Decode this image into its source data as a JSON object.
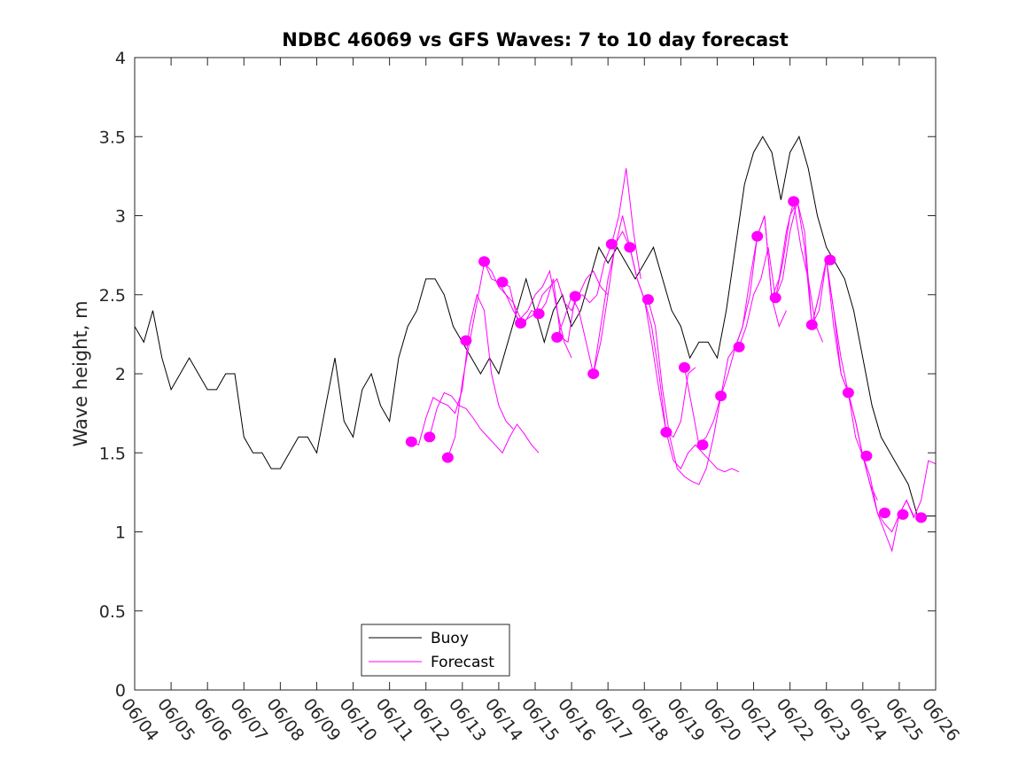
{
  "chart_data": {
    "type": "line",
    "title": "NDBC 46069 vs GFS Waves: 7 to 10 day forecast",
    "xlabel": "",
    "ylabel": "Wave height, m",
    "ylim": [
      0,
      4
    ],
    "yticks": [
      0,
      0.5,
      1,
      1.5,
      2,
      2.5,
      3,
      3.5,
      4
    ],
    "ytick_labels": [
      "0",
      "0.5",
      "1",
      "1.5",
      "2",
      "2.5",
      "3",
      "3.5",
      "4"
    ],
    "xlim_days": [
      4,
      26
    ],
    "xtick_labels": [
      "06/04",
      "06/05",
      "06/06",
      "06/07",
      "06/08",
      "06/09",
      "06/10",
      "06/11",
      "06/12",
      "06/13",
      "06/14",
      "06/15",
      "06/16",
      "06/17",
      "06/18",
      "06/19",
      "06/20",
      "06/21",
      "06/22",
      "06/23",
      "06/24",
      "06/25",
      "06/26"
    ],
    "grid": false,
    "legend": {
      "position": "bottom-left",
      "entries": [
        "Buoy",
        "Forecast"
      ]
    },
    "colors": {
      "buoy": "#000000",
      "forecast": "#ff00ff",
      "axis": "#262626"
    },
    "buoy": {
      "name": "Buoy",
      "x": [
        4.0,
        4.25,
        4.5,
        4.75,
        5.0,
        5.25,
        5.5,
        5.75,
        6.0,
        6.25,
        6.5,
        6.75,
        7.0,
        7.25,
        7.5,
        7.75,
        8.0,
        8.25,
        8.5,
        8.75,
        9.0,
        9.25,
        9.5,
        9.75,
        10.0,
        10.25,
        10.5,
        10.75,
        11.0,
        11.25,
        11.5,
        11.75,
        12.0,
        12.25,
        12.5,
        12.75,
        13.0,
        13.25,
        13.5,
        13.75,
        14.0,
        14.25,
        14.5,
        14.75,
        15.0,
        15.25,
        15.5,
        15.75,
        16.0,
        16.25,
        16.5,
        16.75,
        17.0,
        17.25,
        17.5,
        17.75,
        18.0,
        18.25,
        18.5,
        18.75,
        19.0,
        19.25,
        19.5,
        19.75,
        20.0,
        20.25,
        20.5,
        20.75,
        21.0,
        21.25,
        21.5,
        21.75,
        22.0,
        22.25,
        22.5,
        22.75,
        23.0,
        23.25,
        23.5,
        23.75,
        24.0,
        24.25,
        24.5,
        24.75,
        25.0,
        25.25,
        25.5,
        25.75,
        26.0
      ],
      "y": [
        2.3,
        2.2,
        2.4,
        2.1,
        1.9,
        2.0,
        2.1,
        2.0,
        1.9,
        1.9,
        2.0,
        2.0,
        1.6,
        1.5,
        1.5,
        1.4,
        1.4,
        1.5,
        1.6,
        1.6,
        1.5,
        1.8,
        2.1,
        1.7,
        1.6,
        1.9,
        2.0,
        1.8,
        1.7,
        2.1,
        2.3,
        2.4,
        2.6,
        2.6,
        2.5,
        2.3,
        2.2,
        2.1,
        2.0,
        2.1,
        2.0,
        2.2,
        2.4,
        2.6,
        2.4,
        2.2,
        2.4,
        2.5,
        2.3,
        2.4,
        2.6,
        2.8,
        2.7,
        2.8,
        2.7,
        2.6,
        2.7,
        2.8,
        2.6,
        2.4,
        2.3,
        2.1,
        2.2,
        2.2,
        2.1,
        2.4,
        2.8,
        3.2,
        3.4,
        3.5,
        3.4,
        3.1,
        3.4,
        3.5,
        3.3,
        3.0,
        2.8,
        2.7,
        2.6,
        2.4,
        2.1,
        1.8,
        1.6,
        1.5,
        1.4,
        1.3,
        1.1,
        1.1,
        1.1
      ]
    },
    "forecast_traces": [
      {
        "x": [
          11.6,
          11.8,
          12.0,
          12.2,
          12.4,
          12.6,
          12.8,
          13.0,
          13.2,
          13.4,
          13.6,
          13.8,
          14.0,
          14.2,
          14.4
        ],
        "y": [
          1.57,
          1.55,
          1.72,
          1.85,
          1.82,
          1.8,
          1.75,
          1.9,
          2.3,
          2.5,
          2.4,
          2.0,
          1.8,
          1.7,
          1.65
        ]
      },
      {
        "x": [
          12.1,
          12.3,
          12.5,
          12.7,
          12.9,
          13.1,
          13.3,
          13.5,
          13.7,
          13.9,
          14.1,
          14.3,
          14.5,
          14.7,
          14.9,
          15.1
        ],
        "y": [
          1.6,
          1.78,
          1.88,
          1.86,
          1.8,
          1.78,
          1.72,
          1.65,
          1.6,
          1.55,
          1.5,
          1.6,
          1.68,
          1.62,
          1.55,
          1.5
        ]
      },
      {
        "x": [
          12.6,
          12.8,
          13.0,
          13.2,
          13.4,
          13.6,
          13.8,
          14.0,
          14.2,
          14.4,
          14.6,
          14.8,
          15.0,
          15.2,
          15.4,
          15.6,
          15.8,
          16.0
        ],
        "y": [
          1.47,
          1.6,
          1.95,
          2.2,
          2.45,
          2.7,
          2.65,
          2.55,
          2.5,
          2.45,
          2.35,
          2.4,
          2.5,
          2.55,
          2.65,
          2.4,
          2.2,
          2.1
        ]
      },
      {
        "x": [
          13.6,
          13.8,
          14.0,
          14.2,
          14.4,
          14.6,
          14.8,
          15.0,
          15.2,
          15.4,
          15.6,
          15.8,
          16.0,
          16.2,
          16.4,
          16.6,
          16.8,
          17.0
        ],
        "y": [
          2.71,
          2.6,
          2.58,
          2.5,
          2.4,
          2.32,
          2.35,
          2.38,
          2.5,
          2.55,
          2.6,
          2.45,
          2.4,
          2.5,
          2.6,
          2.65,
          2.55,
          2.5
        ]
      },
      {
        "x": [
          14.1,
          14.3,
          14.5,
          14.7,
          14.9,
          15.1,
          15.3,
          15.5,
          15.7,
          15.9,
          16.1,
          16.3,
          16.5,
          16.7,
          16.9,
          17.1,
          17.3,
          17.5,
          17.7,
          17.9
        ],
        "y": [
          2.58,
          2.55,
          2.35,
          2.32,
          2.4,
          2.38,
          2.45,
          2.6,
          2.23,
          2.2,
          2.49,
          2.5,
          2.45,
          2.5,
          2.7,
          2.82,
          3.0,
          3.3,
          2.9,
          2.6
        ]
      },
      {
        "x": [
          15.6,
          15.8,
          16.0,
          16.2,
          16.4,
          16.6,
          16.8,
          17.0,
          17.2,
          17.4,
          17.6,
          17.8,
          18.0,
          18.2,
          18.4,
          18.6,
          18.8,
          19.0,
          19.2,
          19.4
        ],
        "y": [
          2.23,
          2.35,
          2.49,
          2.4,
          2.2,
          2.0,
          2.3,
          2.6,
          2.8,
          3.0,
          2.8,
          2.6,
          2.47,
          2.2,
          1.9,
          1.63,
          1.6,
          1.7,
          2.0,
          2.04
        ]
      },
      {
        "x": [
          16.6,
          16.8,
          17.0,
          17.2,
          17.4,
          17.6,
          17.8,
          18.0,
          18.2,
          18.4,
          18.6,
          18.8,
          19.0,
          19.2,
          19.4,
          19.6,
          19.8,
          20.0,
          20.2,
          20.4,
          20.6
        ],
        "y": [
          2.0,
          2.2,
          2.5,
          2.82,
          2.9,
          2.8,
          2.6,
          2.47,
          2.3,
          2.0,
          1.63,
          1.45,
          1.4,
          1.5,
          1.55,
          1.5,
          1.45,
          1.4,
          1.38,
          1.4,
          1.38
        ]
      },
      {
        "x": [
          18.1,
          18.3,
          18.5,
          18.7,
          18.9,
          19.1,
          19.3,
          19.5,
          19.7,
          19.9,
          20.1,
          20.3,
          20.5,
          20.7,
          20.9,
          21.1,
          21.3,
          21.5,
          21.7,
          21.9
        ],
        "y": [
          2.47,
          2.3,
          1.9,
          1.6,
          1.4,
          1.35,
          1.32,
          1.3,
          1.4,
          1.6,
          1.86,
          2.0,
          2.17,
          2.3,
          2.5,
          2.87,
          3.0,
          2.48,
          2.3,
          2.4
        ]
      },
      {
        "x": [
          19.1,
          19.3,
          19.5,
          19.7,
          19.9,
          20.1,
          20.3,
          20.5,
          20.7,
          20.9,
          21.1,
          21.3,
          21.5,
          21.7,
          21.9,
          22.1,
          22.3,
          22.5,
          22.7,
          22.9
        ],
        "y": [
          2.04,
          1.8,
          1.55,
          1.6,
          1.7,
          1.86,
          2.1,
          2.17,
          2.3,
          2.6,
          2.87,
          3.0,
          2.48,
          2.6,
          2.9,
          3.09,
          2.8,
          2.6,
          2.31,
          2.2
        ]
      },
      {
        "x": [
          20.6,
          20.8,
          21.0,
          21.2,
          21.4,
          21.6,
          21.8,
          22.0,
          22.2,
          22.4,
          22.6,
          22.8,
          23.0,
          23.2,
          23.4,
          23.6,
          23.8,
          24.0,
          24.2,
          24.4
        ],
        "y": [
          2.17,
          2.3,
          2.5,
          2.6,
          2.8,
          2.48,
          2.6,
          2.9,
          3.09,
          2.9,
          2.31,
          2.4,
          2.72,
          2.4,
          2.0,
          1.88,
          1.7,
          1.48,
          1.3,
          1.2
        ]
      },
      {
        "x": [
          21.6,
          21.8,
          22.0,
          22.2,
          22.4,
          22.6,
          22.8,
          23.0,
          23.2,
          23.4,
          23.6,
          23.8,
          24.0,
          24.2,
          24.4,
          24.6,
          24.8,
          25.0,
          25.2,
          25.4
        ],
        "y": [
          2.48,
          2.7,
          3.0,
          3.09,
          2.8,
          2.31,
          2.5,
          2.72,
          2.3,
          2.0,
          1.88,
          1.6,
          1.48,
          1.3,
          1.12,
          1.05,
          1.0,
          1.11,
          1.2,
          1.1
        ]
      },
      {
        "x": [
          22.6,
          22.8,
          23.0,
          23.2,
          23.4,
          23.6,
          23.8,
          24.0,
          24.2,
          24.4,
          24.6,
          24.8,
          25.0,
          25.2,
          25.4,
          25.6,
          25.8,
          26.0
        ],
        "y": [
          2.31,
          2.5,
          2.72,
          2.4,
          2.1,
          1.88,
          1.7,
          1.48,
          1.35,
          1.12,
          1.0,
          0.88,
          1.11,
          1.2,
          1.09,
          1.2,
          1.45,
          1.43
        ]
      }
    ],
    "forecast_points": {
      "name": "Forecast",
      "x": [
        11.6,
        12.1,
        12.6,
        13.1,
        13.6,
        14.1,
        14.6,
        15.1,
        15.6,
        16.1,
        16.6,
        17.1,
        17.6,
        18.1,
        18.6,
        19.1,
        19.6,
        20.1,
        20.6,
        21.1,
        21.6,
        22.1,
        22.6,
        23.1,
        23.6,
        24.1,
        24.6,
        25.1,
        25.6
      ],
      "y": [
        1.57,
        1.6,
        1.47,
        2.21,
        2.71,
        2.58,
        2.32,
        2.38,
        2.23,
        2.49,
        2.0,
        2.82,
        2.8,
        2.47,
        1.63,
        2.04,
        1.55,
        1.86,
        2.17,
        2.87,
        2.48,
        3.09,
        2.31,
        2.72,
        1.88,
        1.48,
        1.12,
        1.11,
        1.09
      ]
    }
  }
}
